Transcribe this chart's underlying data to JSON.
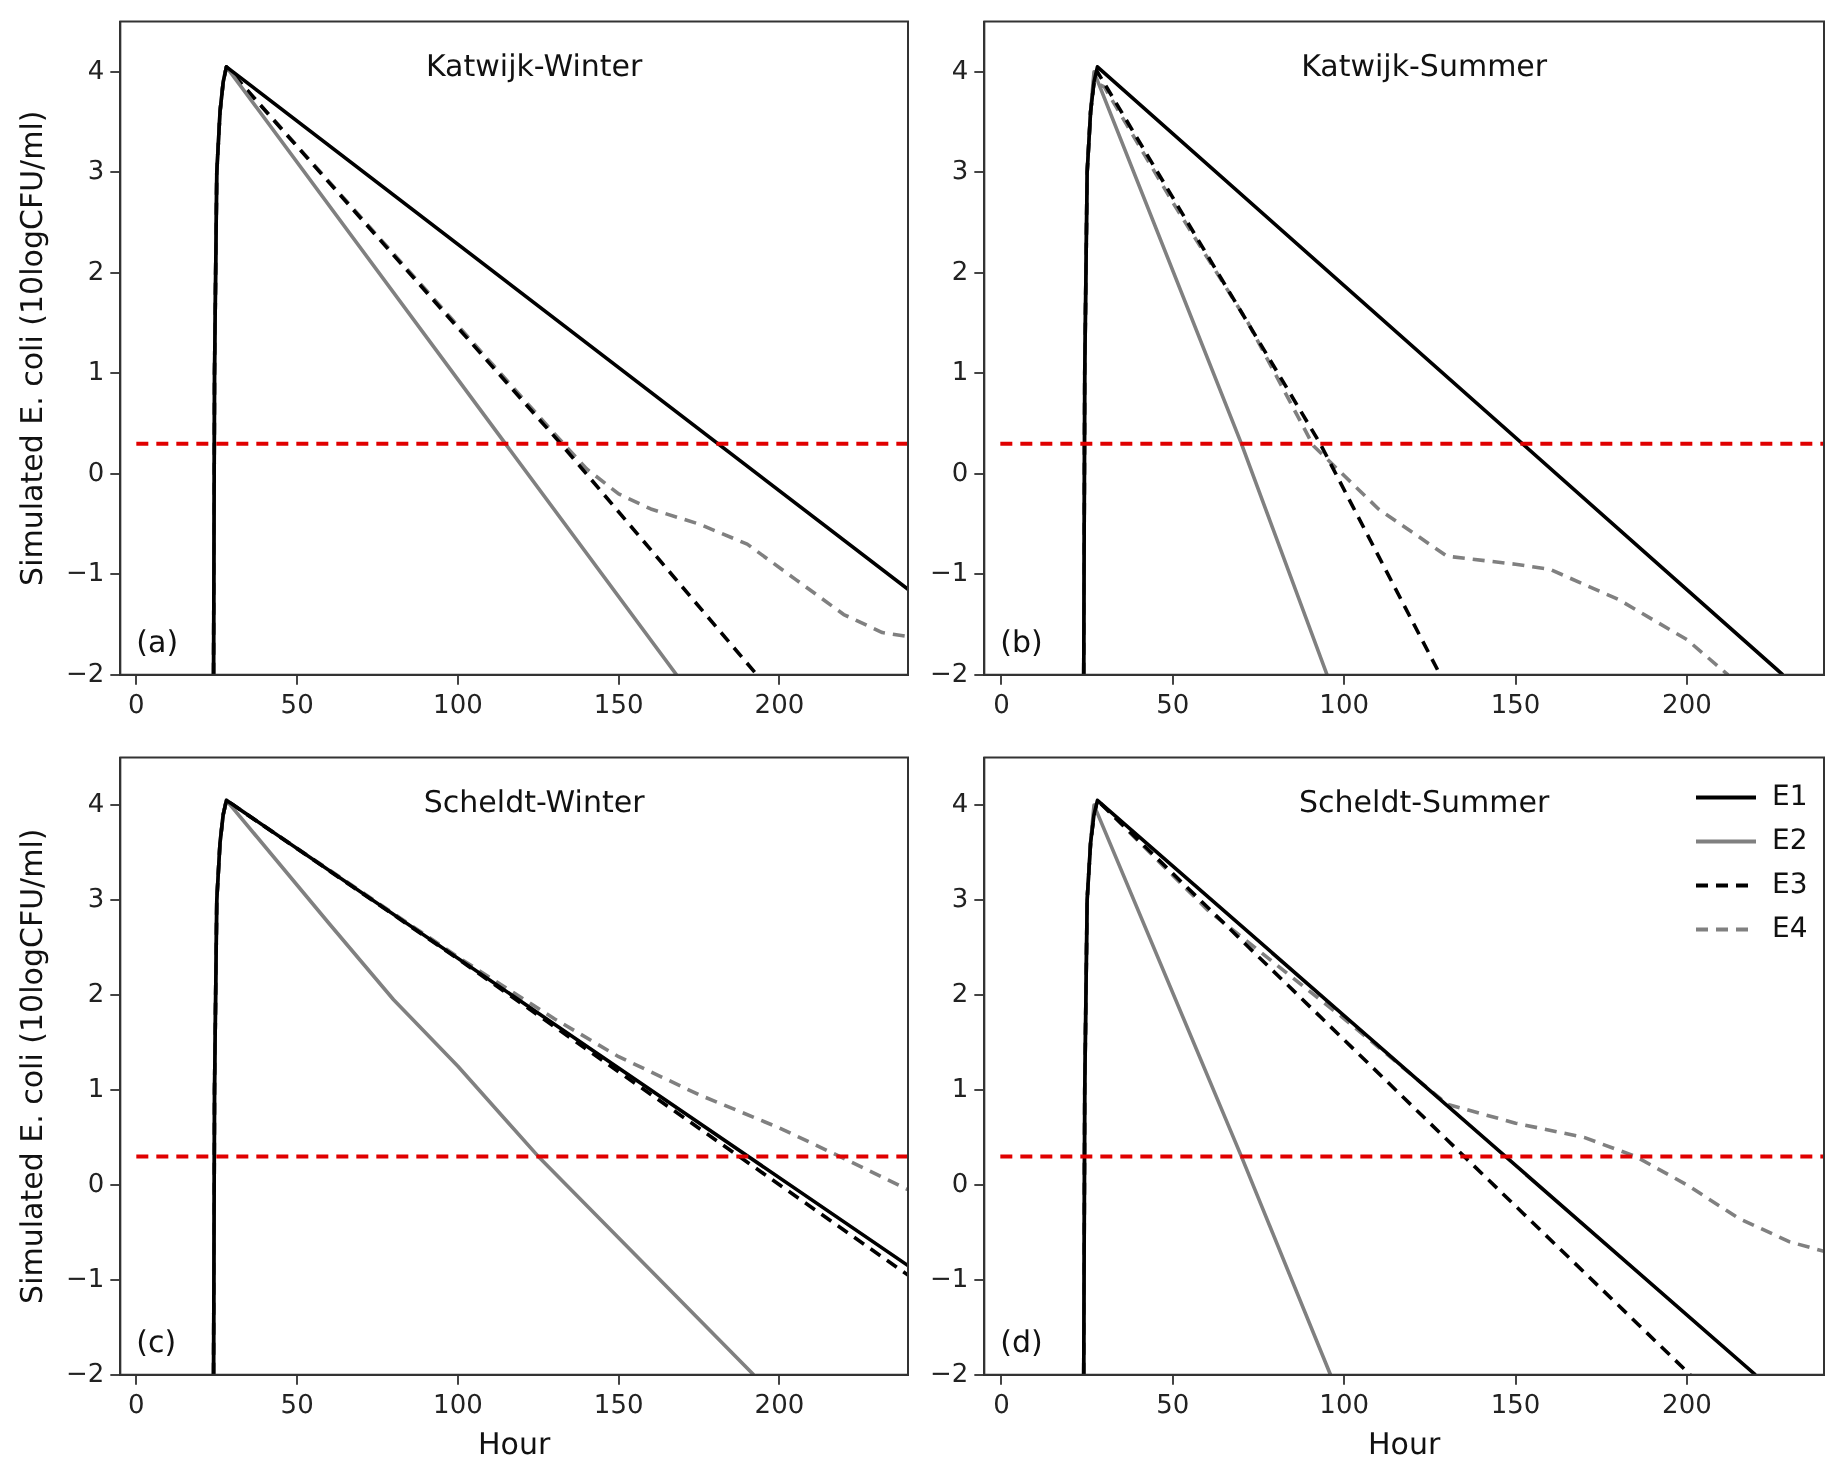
{
  "chart_data": [
    {
      "type": "line",
      "title": "Katwijk-Winter",
      "ylabel": "Simulated E. coli (10logCFU/ml)",
      "annotations": [
        "(a)"
      ],
      "xlim": [
        -5,
        240
      ],
      "ylim": [
        -2,
        4.5
      ],
      "xticks": [
        0,
        50,
        100,
        150,
        200
      ],
      "yticks": [
        -2,
        -1,
        0,
        1,
        2,
        3,
        4
      ],
      "grid": false,
      "marker": "none",
      "legend": false,
      "ref_lines": [
        {
          "axis": "y",
          "value": 0.3,
          "color": "#e00000",
          "line_style": "dashed"
        }
      ],
      "series": [
        {
          "color": "#000000",
          "line_style": "solid",
          "x": [
            24,
            24.3,
            25,
            26,
            27,
            28,
            240
          ],
          "values": [
            -2,
            1,
            3,
            3.6,
            3.9,
            4.05,
            -1.15
          ]
        },
        {
          "color": "#808080",
          "line_style": "solid",
          "x": [
            24,
            24.3,
            25,
            26,
            27,
            28,
            168
          ],
          "values": [
            -2,
            1,
            3,
            3.6,
            3.9,
            4.05,
            -2
          ]
        },
        {
          "color": "#000000",
          "line_style": "dashed",
          "x": [
            24,
            24.3,
            25,
            26,
            27,
            28,
            132,
            193
          ],
          "values": [
            -2,
            1,
            3,
            3.6,
            3.9,
            4.05,
            0.3,
            -2
          ]
        },
        {
          "color": "#808080",
          "line_style": "dashed",
          "x": [
            24,
            24.3,
            25,
            26,
            27,
            28,
            130,
            140,
            150,
            160,
            175,
            190,
            205,
            220,
            232,
            240
          ],
          "values": [
            -2,
            1,
            3,
            3.6,
            3.9,
            4.05,
            0.4,
            0.05,
            -0.2,
            -0.35,
            -0.5,
            -0.7,
            -1.05,
            -1.4,
            -1.58,
            -1.62
          ]
        }
      ]
    },
    {
      "type": "line",
      "title": "Katwijk-Summer",
      "annotations": [
        "(b)"
      ],
      "xlim": [
        -5,
        240
      ],
      "ylim": [
        -2,
        4.5
      ],
      "xticks": [
        0,
        50,
        100,
        150,
        200
      ],
      "yticks": [
        -2,
        -1,
        0,
        1,
        2,
        3,
        4
      ],
      "grid": false,
      "marker": "none",
      "legend": false,
      "ref_lines": [
        {
          "axis": "y",
          "value": 0.3,
          "color": "#e00000",
          "line_style": "dashed"
        }
      ],
      "series": [
        {
          "color": "#000000",
          "line_style": "solid",
          "x": [
            24,
            24.3,
            25,
            26,
            27,
            28,
            228
          ],
          "values": [
            -2,
            1,
            3,
            3.6,
            3.9,
            4.05,
            -2
          ]
        },
        {
          "color": "#808080",
          "line_style": "solid",
          "x": [
            24,
            24.3,
            25,
            26,
            27,
            70,
            95
          ],
          "values": [
            -2,
            1,
            3,
            3.6,
            4.0,
            0.3,
            -2
          ]
        },
        {
          "color": "#000000",
          "line_style": "dashed",
          "x": [
            24,
            24.3,
            25,
            26,
            27,
            28,
            93,
            128
          ],
          "values": [
            -2,
            1,
            3,
            3.6,
            3.9,
            4.0,
            0.3,
            -2
          ]
        },
        {
          "color": "#808080",
          "line_style": "dashed",
          "x": [
            24,
            24.3,
            25,
            26,
            27,
            30,
            50,
            72,
            91,
            110,
            130,
            150,
            160,
            180,
            200,
            212
          ],
          "values": [
            -2,
            1,
            3,
            3.6,
            3.9,
            3.85,
            2.7,
            1.5,
            0.28,
            -0.35,
            -0.82,
            -0.9,
            -0.95,
            -1.25,
            -1.65,
            -2
          ]
        }
      ]
    },
    {
      "type": "line",
      "title": "Scheldt-Winter",
      "ylabel": "Simulated E. coli (10logCFU/ml)",
      "xlabel": "Hour",
      "annotations": [
        "(c)"
      ],
      "xlim": [
        -5,
        240
      ],
      "ylim": [
        -2,
        4.5
      ],
      "xticks": [
        0,
        50,
        100,
        150,
        200
      ],
      "yticks": [
        -2,
        -1,
        0,
        1,
        2,
        3,
        4
      ],
      "grid": false,
      "marker": "none",
      "legend": false,
      "ref_lines": [
        {
          "axis": "y",
          "value": 0.3,
          "color": "#e00000",
          "line_style": "dashed"
        }
      ],
      "series": [
        {
          "color": "#000000",
          "line_style": "solid",
          "x": [
            24,
            24.3,
            25,
            26,
            27,
            28,
            240
          ],
          "values": [
            -2,
            1,
            3,
            3.6,
            3.9,
            4.05,
            -0.85
          ]
        },
        {
          "color": "#808080",
          "line_style": "solid",
          "x": [
            24,
            24.3,
            25,
            26,
            27,
            28,
            60,
            80,
            100,
            125,
            192
          ],
          "values": [
            -2,
            1,
            3,
            3.6,
            3.9,
            4.05,
            2.75,
            1.95,
            1.25,
            0.3,
            -2
          ]
        },
        {
          "color": "#000000",
          "line_style": "dashed",
          "x": [
            24,
            24.3,
            25,
            26,
            27,
            28,
            100,
            240
          ],
          "values": [
            -2,
            1,
            3,
            3.6,
            3.9,
            4.05,
            2.38,
            -0.95
          ]
        },
        {
          "color": "#808080",
          "line_style": "dashed",
          "x": [
            24,
            24.3,
            25,
            26,
            27,
            28,
            100,
            130,
            150,
            175,
            200,
            220,
            240
          ],
          "values": [
            -2,
            1,
            3,
            3.6,
            3.9,
            4.05,
            2.4,
            1.75,
            1.35,
            0.95,
            0.6,
            0.28,
            -0.05
          ]
        }
      ]
    },
    {
      "type": "line",
      "title": "Scheldt-Summer",
      "xlabel": "Hour",
      "annotations": [
        "(d)"
      ],
      "xlim": [
        -5,
        240
      ],
      "ylim": [
        -2,
        4.5
      ],
      "xticks": [
        0,
        50,
        100,
        150,
        200
      ],
      "yticks": [
        -2,
        -1,
        0,
        1,
        2,
        3,
        4
      ],
      "grid": false,
      "marker": "none",
      "legend": "top right",
      "ref_lines": [
        {
          "axis": "y",
          "value": 0.3,
          "color": "#e00000",
          "line_style": "dashed"
        }
      ],
      "series": [
        {
          "name": "E1",
          "color": "#000000",
          "line_style": "solid",
          "x": [
            24,
            24.3,
            25,
            26,
            27,
            28,
            220
          ],
          "values": [
            -2,
            1,
            3,
            3.6,
            3.9,
            4.05,
            -2
          ]
        },
        {
          "name": "E2",
          "color": "#808080",
          "line_style": "solid",
          "x": [
            24,
            24.3,
            25,
            26,
            27,
            70,
            96
          ],
          "values": [
            -2,
            1,
            3,
            3.6,
            4.0,
            0.3,
            -2
          ]
        },
        {
          "name": "E3",
          "color": "#000000",
          "line_style": "dashed",
          "x": [
            24,
            24.3,
            25,
            26,
            27,
            28,
            135,
            201
          ],
          "values": [
            -2,
            1,
            3,
            3.6,
            3.9,
            4.05,
            0.3,
            -2
          ]
        },
        {
          "name": "E4",
          "color": "#808080",
          "line_style": "dashed",
          "x": [
            24,
            24.3,
            25,
            26,
            27,
            28,
            60,
            100,
            125,
            130,
            150,
            170,
            185,
            200,
            215,
            230,
            240
          ],
          "values": [
            -2,
            1,
            3,
            3.6,
            3.9,
            4.05,
            2.9,
            1.75,
            1.0,
            0.85,
            0.65,
            0.5,
            0.3,
            0.0,
            -0.35,
            -0.6,
            -0.7
          ]
        }
      ]
    }
  ]
}
